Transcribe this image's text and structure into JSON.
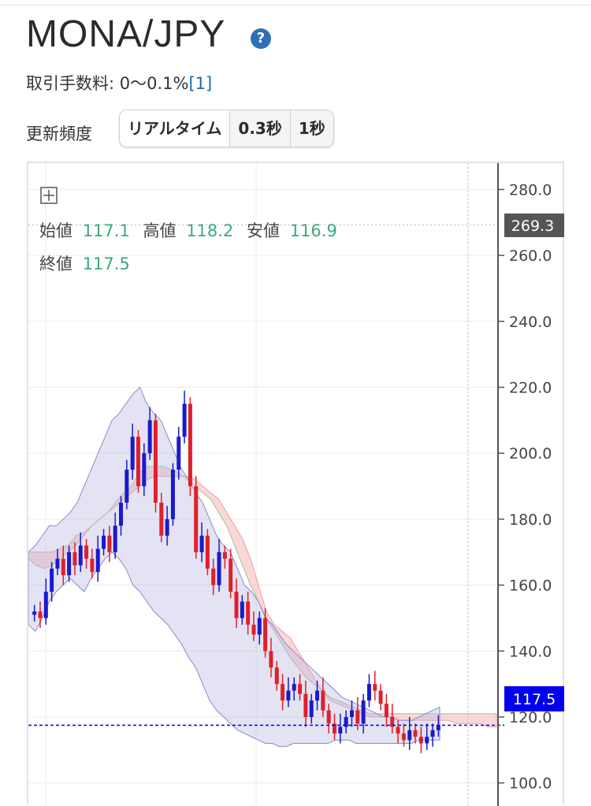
{
  "header": {
    "title": "MONA/JPY",
    "help_icon": "question-circle-icon",
    "fee_label": "取引手数料: 0〜0.1%",
    "fee_ref": "[1]"
  },
  "update_frequency": {
    "label": "更新頻度",
    "options": [
      "リアルタイム",
      "0.3秒",
      "1秒"
    ],
    "selected": "リアルタイム"
  },
  "ohlc": {
    "open_label": "始値",
    "open": "117.1",
    "high_label": "高値",
    "high": "118.2",
    "low_label": "安値",
    "low": "116.9",
    "close_label": "終値",
    "close": "117.5"
  },
  "chart_data": {
    "type": "candlestick",
    "y_ticks": [
      "280.0",
      "260.0",
      "240.0",
      "220.0",
      "200.0",
      "180.0",
      "160.0",
      "140.0",
      "120.0",
      "100.0"
    ],
    "ylim": [
      93,
      288
    ],
    "crosshair_price": "269.3",
    "current_price": "117.5",
    "colors": {
      "up": "#1a1acc",
      "down": "#e0202a",
      "cloud_bull": "#a8d8a8",
      "cloud_bear": "#f7b8b8",
      "bands": "#b8b8e0",
      "current": "#0000ee"
    },
    "close_series": [
      152,
      150,
      158,
      165,
      168,
      163,
      170,
      166,
      172,
      168,
      164,
      171,
      175,
      170,
      178,
      185,
      195,
      205,
      190,
      200,
      210,
      185,
      175,
      180,
      195,
      205,
      215,
      190,
      170,
      175,
      165,
      160,
      170,
      168,
      158,
      150,
      155,
      148,
      145,
      150,
      140,
      135,
      130,
      125,
      128,
      130,
      127,
      120,
      125,
      128,
      122,
      118,
      115,
      117,
      120,
      122,
      118,
      125,
      130,
      128,
      124,
      120,
      117,
      115,
      113,
      116,
      114,
      112,
      114,
      116,
      117.5
    ],
    "upper_band": [
      170,
      172,
      175,
      178,
      178,
      180,
      182,
      185,
      190,
      195,
      200,
      205,
      210,
      212,
      215,
      218,
      220,
      215,
      212,
      210,
      205,
      200,
      195,
      192,
      188,
      185,
      180,
      175,
      172,
      170,
      165,
      160,
      158,
      155,
      150,
      148,
      145,
      142,
      140,
      138,
      136,
      134,
      132,
      130,
      128,
      126,
      125,
      124,
      123,
      122,
      121,
      120,
      120,
      119,
      119,
      119,
      120,
      121,
      122,
      123
    ],
    "lower_band": [
      148,
      146,
      150,
      155,
      158,
      160,
      162,
      160,
      158,
      162,
      165,
      168,
      170,
      168,
      165,
      160,
      158,
      155,
      152,
      150,
      148,
      145,
      142,
      138,
      135,
      130,
      125,
      122,
      120,
      118,
      116,
      115,
      114,
      113,
      112,
      112,
      111,
      111,
      112,
      112,
      112,
      112,
      112,
      112,
      113,
      113,
      113,
      112,
      112,
      112,
      112,
      112,
      112,
      112,
      112,
      112,
      113,
      113,
      113,
      113
    ],
    "span_a": [
      168,
      166,
      165,
      166,
      168,
      170,
      172,
      175,
      178,
      180,
      182,
      185,
      188,
      190,
      194,
      196,
      196,
      196,
      195,
      194,
      192,
      190,
      188,
      186,
      182,
      178,
      172,
      166,
      160,
      155,
      150,
      146,
      142,
      138,
      135,
      132,
      130,
      128,
      126,
      125,
      124,
      123,
      122,
      121,
      121,
      121,
      121,
      121,
      121,
      121,
      121,
      121,
      121,
      121,
      121,
      121,
      121,
      121,
      121,
      121
    ],
    "span_b": [
      170,
      170,
      170,
      170,
      171,
      172,
      175,
      176,
      178,
      180,
      182,
      184,
      186,
      188,
      190,
      192,
      193,
      193,
      193,
      193,
      193,
      192,
      190,
      188,
      186,
      182,
      178,
      174,
      168,
      160,
      152,
      148,
      146,
      144,
      140,
      136,
      132,
      128,
      125,
      124,
      123,
      122,
      121,
      120,
      120,
      120,
      120,
      119,
      119,
      119,
      119,
      119,
      119,
      119,
      118,
      118,
      118,
      118,
      117,
      117
    ]
  }
}
